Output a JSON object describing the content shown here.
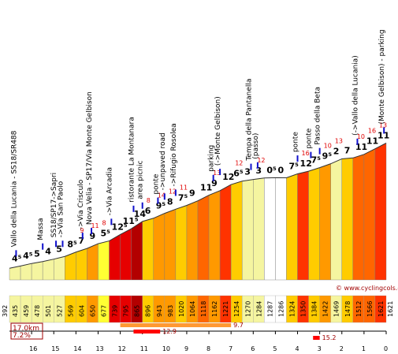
{
  "chart_data": {
    "type": "area",
    "xlim_km": [
      17,
      0
    ],
    "ylim_m": [
      392,
      1621
    ],
    "start_altitude": "392",
    "summit_altitude": "1621",
    "segments": [
      {
        "start_alt": 413,
        "end_alt": 435,
        "grade": "4⁵",
        "max_grade": "",
        "color": "#f5f5a0"
      },
      {
        "start_alt": 435,
        "end_alt": 459,
        "grade": "4⁵",
        "max_grade": "",
        "color": "#f5f5a0"
      },
      {
        "start_alt": 459,
        "end_alt": 478,
        "grade": "5",
        "max_grade": "",
        "color": "#f5f5a0"
      },
      {
        "start_alt": 478,
        "end_alt": 501,
        "grade": "4",
        "max_grade": "",
        "color": "#f5f5a0"
      },
      {
        "start_alt": 501,
        "end_alt": 527,
        "grade": "5",
        "max_grade": "",
        "color": "#f5f5a0"
      },
      {
        "start_alt": 527,
        "end_alt": 569,
        "grade": "8⁵",
        "max_grade": "",
        "color": "#ffcc00"
      },
      {
        "start_alt": 569,
        "end_alt": 604,
        "grade": "7",
        "max_grade": "9",
        "color": "#ffcc00"
      },
      {
        "start_alt": 604,
        "end_alt": 650,
        "grade": "9",
        "max_grade": "11",
        "color": "#ff9900"
      },
      {
        "start_alt": 650,
        "end_alt": 677,
        "grade": "5⁵",
        "max_grade": "8",
        "color": "#ffff33"
      },
      {
        "start_alt": 677,
        "end_alt": 739,
        "grade": "12⁵",
        "max_grade": "",
        "color": "#e60000"
      },
      {
        "start_alt": 739,
        "end_alt": 795,
        "grade": "11⁵",
        "max_grade": "",
        "color": "#e60000"
      },
      {
        "start_alt": 795,
        "end_alt": 865,
        "grade": "14",
        "max_grade": "",
        "color": "#b30000"
      },
      {
        "start_alt": 865,
        "end_alt": 896,
        "grade": "6",
        "max_grade": "8",
        "color": "#ffcc00"
      },
      {
        "start_alt": 896,
        "end_alt": 943,
        "grade": "9⁵",
        "max_grade": "14",
        "color": "#ff9900"
      },
      {
        "start_alt": 943,
        "end_alt": 983,
        "grade": "8",
        "max_grade": "12",
        "color": "#ff9900"
      },
      {
        "start_alt": 983,
        "end_alt": 1020,
        "grade": "7⁵",
        "max_grade": "11",
        "color": "#ffcc00"
      },
      {
        "start_alt": 1020,
        "end_alt": 1064,
        "grade": "9",
        "max_grade": "",
        "color": "#ff9900"
      },
      {
        "start_alt": 1064,
        "end_alt": 1118,
        "grade": "11",
        "max_grade": "",
        "color": "#ff6600"
      },
      {
        "start_alt": 1118,
        "end_alt": 1162,
        "grade": "9",
        "max_grade": "13",
        "color": "#ff9900"
      },
      {
        "start_alt": 1162,
        "end_alt": 1221,
        "grade": "12",
        "max_grade": "",
        "color": "#ff3300"
      },
      {
        "start_alt": 1221,
        "end_alt": 1254,
        "grade": "6⁵",
        "max_grade": "12",
        "color": "#ffcc00"
      },
      {
        "start_alt": 1254,
        "end_alt": 1270,
        "grade": "3",
        "max_grade": "",
        "color": "#f5f5a0"
      },
      {
        "start_alt": 1270,
        "end_alt": 1284,
        "grade": "3",
        "max_grade": "12",
        "color": "#f5f5a0"
      },
      {
        "start_alt": 1284,
        "end_alt": 1287,
        "grade": "0⁵",
        "max_grade": "",
        "color": "#ffffff"
      },
      {
        "start_alt": 1287,
        "end_alt": 1286,
        "grade": "0",
        "max_grade": "",
        "color": "#ffffff"
      },
      {
        "start_alt": 1286,
        "end_alt": 1324,
        "grade": "7⁵",
        "max_grade": "",
        "color": "#ffcc00"
      },
      {
        "start_alt": 1324,
        "end_alt": 1350,
        "grade": "12",
        "max_grade": "16",
        "color": "#ff3300"
      },
      {
        "start_alt": 1350,
        "end_alt": 1384,
        "grade": "7⁵",
        "max_grade": "",
        "color": "#ffcc00"
      },
      {
        "start_alt": 1384,
        "end_alt": 1422,
        "grade": "9⁵",
        "max_grade": "10",
        "color": "#ff9900"
      },
      {
        "start_alt": 1422,
        "end_alt": 1469,
        "grade": "2",
        "max_grade": "13",
        "color": "#f5f5a0"
      },
      {
        "start_alt": 1469,
        "end_alt": 1478,
        "grade": "7",
        "max_grade": "",
        "color": "#ffcc00"
      },
      {
        "start_alt": 1478,
        "end_alt": 1512,
        "grade": "11",
        "max_grade": "10",
        "color": "#ff6600"
      },
      {
        "start_alt": 1512,
        "end_alt": 1566,
        "grade": "11",
        "max_grade": "16",
        "color": "#ff6600"
      },
      {
        "start_alt": 1566,
        "end_alt": 1621,
        "grade": "11",
        "max_grade": "13",
        "color": "#ff3300"
      }
    ],
    "km_ticks": [
      "16",
      "15",
      "14",
      "13",
      "12",
      "11",
      "10",
      "9",
      "8",
      "7",
      "6",
      "5",
      "4",
      "3",
      "2",
      "1",
      "0"
    ],
    "landmarks": [
      {
        "text": "Vallo della Lucania - SS18/SR488",
        "km": 16.7
      },
      {
        "text": "Massa",
        "km": 15.5
      },
      {
        "text": "SS18/SP17->Sapri",
        "km": 14.9
      },
      {
        "text": "->Via San Paolo",
        "km": 14.6
      },
      {
        "text": "->Via Crisculo",
        "km": 13.7
      },
      {
        "text": "Nova Velia - SP17/Via Monte Gelbison",
        "km": 13.3
      },
      {
        "text": "->Via Arcadia",
        "km": 12.4
      },
      {
        "text": "ristorante La Montanara",
        "km": 11.4
      },
      {
        "text": "area picnic",
        "km": 11.0
      },
      {
        "text": "ponte",
        "km": 10.3
      },
      {
        "text": "->unpaved road",
        "km": 10.0
      },
      {
        "text": "->Rifugio Rosolea",
        "km": 9.5
      },
      {
        "text": "parking",
        "km": 7.8
      },
      {
        "text": "(->Monte Gelbison)",
        "km": 7.5
      },
      {
        "text": "Tempa della Pantanella",
        "km": 6.1
      },
      {
        "text": "(passo)",
        "km": 5.8
      },
      {
        "text": "ponte",
        "km": 4.0
      },
      {
        "text": "ponte",
        "km": 3.4
      },
      {
        "text": "Passo della Beta",
        "km": 3.0
      },
      {
        "text": "(->Vallo della Lucania)",
        "km": 1.3
      },
      {
        "text": "(Monte Gelbison) - parking",
        "km": 0.1
      }
    ],
    "summary": {
      "length": "17.0km",
      "avg_grade": "7.2%",
      "bars": [
        {
          "label": "",
          "value": "9.7",
          "from_km": 12.0,
          "to_km": 7.0,
          "color": "#ff9933"
        },
        {
          "label": "",
          "value": "12.9",
          "from_km": 11.4,
          "to_km": 10.2,
          "color": "#ff0000"
        },
        {
          "label": "",
          "value": "15.2",
          "from_km": 3.3,
          "to_km": 3.0,
          "color": "#ff0000"
        }
      ]
    },
    "watermark": "© www.cyclingcols.com"
  }
}
